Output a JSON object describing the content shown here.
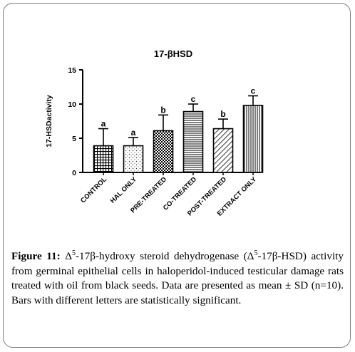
{
  "caption": {
    "label": "Figure 11:",
    "delta1": "Δ",
    "sup1": "5",
    "text1": "-17β-hydroxy steroid dehydrogenase (Δ",
    "sup2": "5",
    "text2": "-17β-HSD) activity from germinal epithelial cells in haloperidol-induced testicular damage rats treated with oil from black seeds. Data are presented as mean ± SD (n=10). Bars with different letters are statistically significant."
  },
  "chart_data": {
    "type": "bar",
    "title": "17-βHSD",
    "xlabel": "",
    "ylabel": "17-HSDactivity",
    "ylim": [
      0,
      15
    ],
    "yticks": [
      "0",
      "5",
      "10",
      "15"
    ],
    "categories": [
      "CONTROL",
      "HAL ONLY",
      "PRE-TREATED",
      "CO-TREATED",
      "POST-TREATED",
      "EXTRACT ONLY"
    ],
    "values": [
      3.9,
      3.9,
      6.1,
      8.9,
      6.4,
      9.8
    ],
    "errors": [
      2.5,
      1.2,
      2.3,
      1.1,
      1.4,
      1.4
    ],
    "letters": [
      "a",
      "a",
      "b",
      "c",
      "b",
      "c"
    ],
    "patterns": [
      "grid",
      "dots",
      "checker",
      "hlines",
      "diagonal",
      "vlines"
    ],
    "grid": false,
    "legend": "none"
  }
}
